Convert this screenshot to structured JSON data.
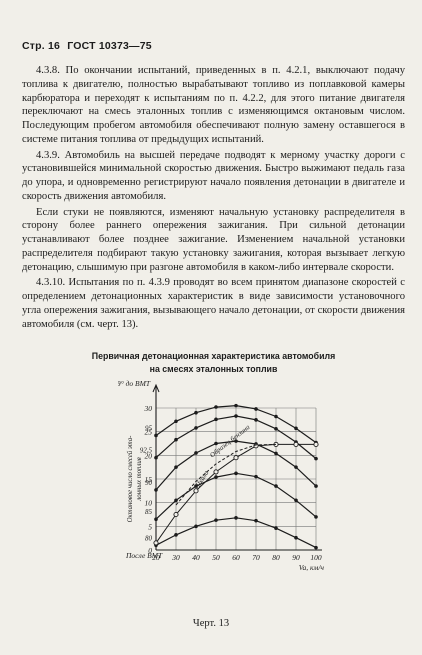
{
  "header": {
    "page_label": "Стр. 16",
    "standard": "ГОСТ 10373—75"
  },
  "paragraphs": [
    "4.3.8. По окончании испытаний, приведенных в п. 4.2.1, выключают подачу топлива к двигателю, полностью вырабатывают топливо из поплавковой камеры карбюратора и переходят к испытаниям по п. 4.2.2, для этого питание двигателя переключают на смесь эталонных топлив с изменяющимся октановым числом. Последующим пробегом автомобиля обеспечивают полную замену оставшегося в системе питания топлива от предыдущих испытаний.",
    "4.3.9. Автомобиль на высшей передаче подводят к мерному участку дороги с установившейся минимальной скоростью движения. Быстро выжимают педаль газа до упора, и одновременно регистрируют начало появления детонации в двигателе и скорость движения автомобиля.",
    "Если стуки не появляются, изменяют начальную установку распределителя в сторону более раннего опережения зажигания. При сильной детонации устанавливают более позднее зажигание. Изменением начальной установки распределителя подбирают такую установку зажигания, которая вызывает легкую детонацию, слышимую при разгоне автомобиля в каком-либо интервале скорости.",
    "4.3.10. Испытания по п. 4.3.9 проводят во всем принятом диапазоне скоростей с определением детонационных характеристик в виде зависимости установочного угла опережения зажигания, вызывающего начало детонации, от скорости движения автомобиля (см. черт. 13)."
  ],
  "chart_title_line1": "Первичная детонационная характеристика автомобиля",
  "chart_title_line2": "на смесях эталонных топлив",
  "caption": "Черт. 13",
  "chart_data": {
    "type": "line",
    "ylabel": "θ° до ВМТ",
    "xlabel": "Va, км/ч",
    "side_label_line1": "Октановое число смесей эта-",
    "side_label_line2": "лонных топлив",
    "bottom_left_label": "После ВМТ",
    "curve_labels": {
      "ignition": "Шкала",
      "required": "Образец бензина"
    },
    "x": [
      20,
      30,
      40,
      50,
      60,
      70,
      80,
      90,
      100
    ],
    "x_tick_labels": [
      "20",
      "30",
      "40",
      "50",
      "60",
      "70",
      "80",
      "90",
      "100"
    ],
    "y_ticks": [
      0,
      5,
      10,
      15,
      20,
      25,
      30
    ],
    "y_tick_labels": [
      "0",
      "5",
      "10",
      "15",
      "20",
      "25",
      "30"
    ],
    "xlim": [
      20,
      100
    ],
    "ylim": [
      0,
      30
    ],
    "series": [
      {
        "name": "80",
        "values": [
          1,
          3.2,
          5,
          6.3,
          6.8,
          6.2,
          4.6,
          2.6,
          0.5
        ]
      },
      {
        "name": "85",
        "values": [
          6.5,
          10.5,
          13.5,
          15.4,
          16.2,
          15.5,
          13.5,
          10.5,
          7
        ]
      },
      {
        "name": "90",
        "values": [
          12.7,
          17.5,
          20.5,
          22.5,
          23,
          22.4,
          20.4,
          17.5,
          13.5
        ]
      },
      {
        "name": "92,5",
        "values": [
          19.5,
          23.3,
          25.8,
          27.6,
          28.3,
          27.5,
          25.6,
          22.8,
          19.3
        ]
      },
      {
        "name": "95",
        "values": [
          24.2,
          27.2,
          29,
          30.2,
          30.5,
          29.8,
          28.2,
          25.7,
          22.7
        ]
      }
    ],
    "ignition_curve": {
      "x": [
        20,
        30,
        40,
        50,
        60,
        70,
        80,
        90,
        100
      ],
      "values": [
        1.5,
        7.5,
        12.5,
        16.5,
        19.5,
        22,
        22.3,
        22.3,
        22.3
      ]
    },
    "required_curve": {
      "x": [
        30,
        40,
        50,
        60,
        70,
        80
      ],
      "values": [
        9.5,
        14.5,
        18.2,
        20.8,
        22.2,
        22.3
      ]
    }
  }
}
